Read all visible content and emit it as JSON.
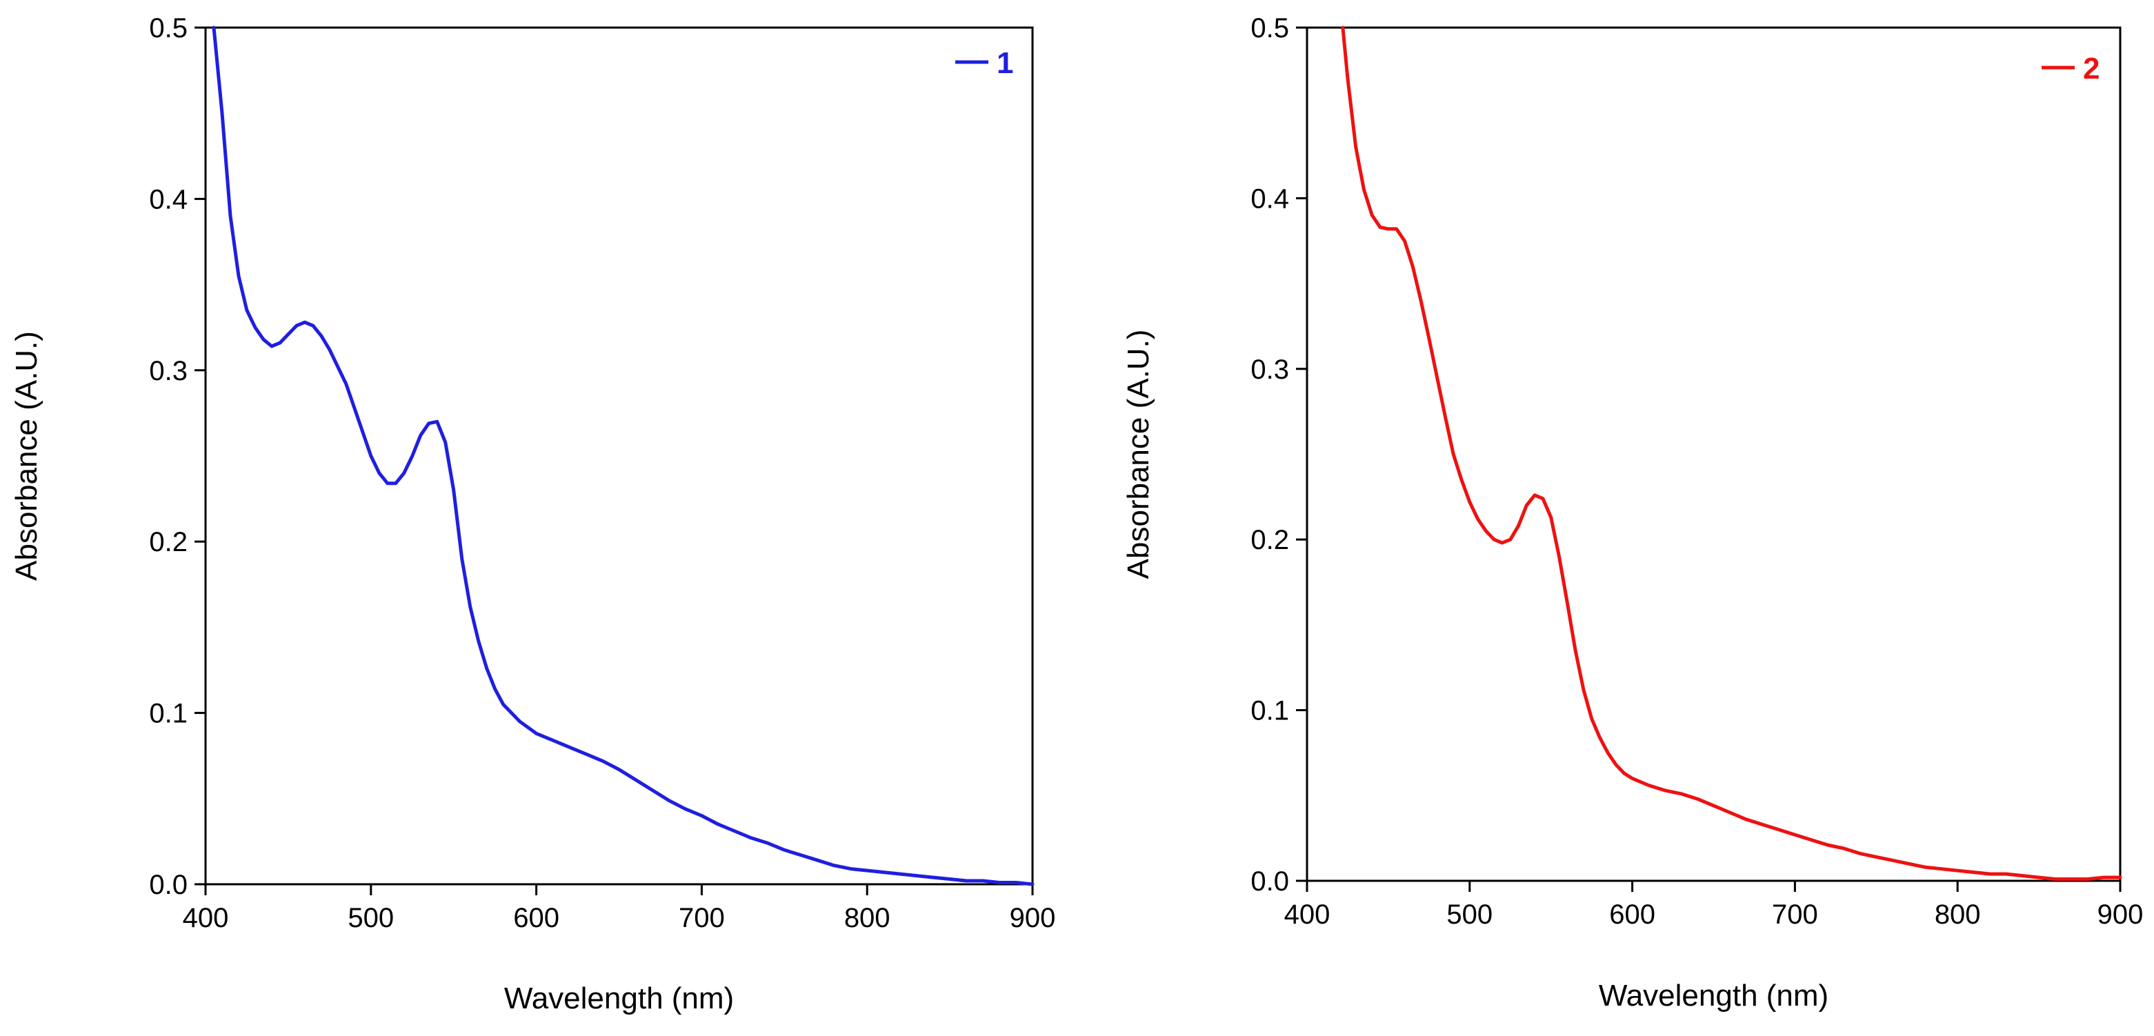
{
  "chart_data": [
    {
      "type": "line",
      "title": "",
      "xlabel": "Wavelength (nm)",
      "ylabel": "Absorbance (A.U.)",
      "xlim": [
        400,
        900
      ],
      "ylim": [
        0.0,
        0.5
      ],
      "xticks": [
        400,
        500,
        600,
        700,
        800,
        900
      ],
      "xtick_labels": [
        "400",
        "500",
        "600",
        "700",
        "800",
        "900"
      ],
      "yticks": [
        0.0,
        0.1,
        0.2,
        0.3,
        0.4,
        0.5
      ],
      "ytick_labels": [
        "0.0",
        "0.1",
        "0.2",
        "0.3",
        "0.4",
        "0.5"
      ],
      "grid": false,
      "legend_position": "top-right",
      "color": "#1f1fe0",
      "series": [
        {
          "name": "1",
          "x": [
            405,
            410,
            415,
            420,
            425,
            430,
            435,
            440,
            445,
            450,
            455,
            460,
            465,
            470,
            475,
            480,
            485,
            490,
            495,
            500,
            505,
            510,
            515,
            520,
            525,
            530,
            535,
            540,
            545,
            550,
            555,
            560,
            565,
            570,
            575,
            580,
            590,
            600,
            610,
            620,
            630,
            640,
            650,
            660,
            670,
            680,
            690,
            700,
            710,
            720,
            730,
            740,
            750,
            760,
            770,
            780,
            790,
            800,
            810,
            820,
            830,
            840,
            850,
            860,
            870,
            880,
            890,
            900
          ],
          "y": [
            0.5,
            0.45,
            0.39,
            0.355,
            0.335,
            0.325,
            0.318,
            0.314,
            0.316,
            0.321,
            0.326,
            0.328,
            0.326,
            0.32,
            0.312,
            0.302,
            0.292,
            0.278,
            0.264,
            0.25,
            0.24,
            0.234,
            0.234,
            0.24,
            0.25,
            0.262,
            0.269,
            0.27,
            0.258,
            0.23,
            0.19,
            0.162,
            0.142,
            0.126,
            0.114,
            0.105,
            0.095,
            0.088,
            0.084,
            0.08,
            0.076,
            0.072,
            0.067,
            0.061,
            0.055,
            0.049,
            0.044,
            0.04,
            0.035,
            0.031,
            0.027,
            0.024,
            0.02,
            0.017,
            0.014,
            0.011,
            0.009,
            0.008,
            0.007,
            0.006,
            0.005,
            0.004,
            0.003,
            0.002,
            0.002,
            0.001,
            0.001,
            0.0
          ]
        }
      ]
    },
    {
      "type": "line",
      "title": "",
      "xlabel": "Wavelength (nm)",
      "ylabel": "Absorbance (A.U.)",
      "xlim": [
        400,
        900
      ],
      "ylim": [
        0.0,
        0.5
      ],
      "xticks": [
        400,
        500,
        600,
        700,
        800,
        900
      ],
      "xtick_labels": [
        "400",
        "500",
        "600",
        "700",
        "800",
        "900"
      ],
      "yticks": [
        0.0,
        0.1,
        0.2,
        0.3,
        0.4,
        0.5
      ],
      "ytick_labels": [
        "0.0",
        "0.1",
        "0.2",
        "0.3",
        "0.4",
        "0.5"
      ],
      "grid": false,
      "legend_position": "top-right",
      "color": "#ee1111",
      "series": [
        {
          "name": "2",
          "x": [
            422,
            425,
            430,
            435,
            440,
            445,
            450,
            455,
            460,
            465,
            470,
            475,
            480,
            485,
            490,
            495,
            500,
            505,
            510,
            515,
            520,
            525,
            530,
            535,
            540,
            545,
            550,
            555,
            560,
            565,
            570,
            575,
            580,
            585,
            590,
            595,
            600,
            610,
            620,
            630,
            640,
            650,
            660,
            670,
            680,
            690,
            700,
            710,
            720,
            730,
            740,
            750,
            760,
            770,
            780,
            790,
            800,
            810,
            820,
            830,
            840,
            850,
            860,
            870,
            880,
            890,
            900
          ],
          "y": [
            0.5,
            0.47,
            0.43,
            0.405,
            0.39,
            0.383,
            0.382,
            0.382,
            0.375,
            0.36,
            0.34,
            0.318,
            0.295,
            0.272,
            0.25,
            0.235,
            0.222,
            0.212,
            0.205,
            0.2,
            0.198,
            0.2,
            0.208,
            0.22,
            0.226,
            0.224,
            0.213,
            0.19,
            0.163,
            0.135,
            0.112,
            0.095,
            0.084,
            0.075,
            0.068,
            0.063,
            0.06,
            0.056,
            0.053,
            0.051,
            0.048,
            0.044,
            0.04,
            0.036,
            0.033,
            0.03,
            0.027,
            0.024,
            0.021,
            0.019,
            0.016,
            0.014,
            0.012,
            0.01,
            0.008,
            0.007,
            0.006,
            0.005,
            0.004,
            0.004,
            0.003,
            0.002,
            0.001,
            0.001,
            0.001,
            0.002,
            0.002
          ]
        }
      ]
    }
  ]
}
